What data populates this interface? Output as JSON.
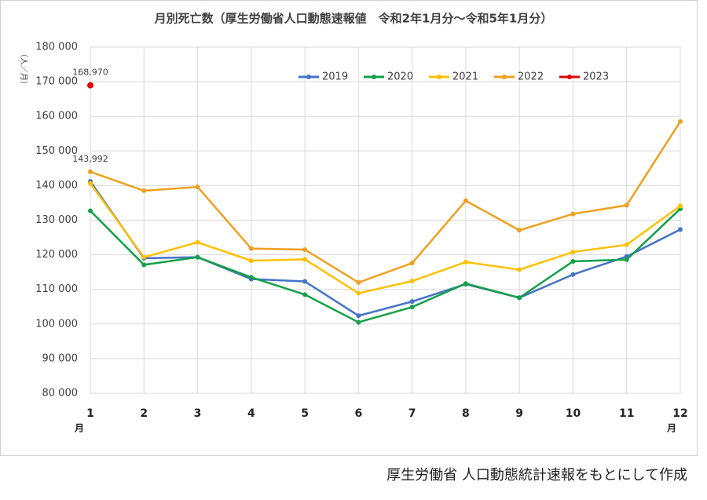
{
  "chart_data": {
    "type": "line",
    "title": "月別死亡数（厚生労働省人口動態速報値　令和2年1月分～令和5年1月分）",
    "y_label": "（人／月）",
    "x_unit_labels": [
      "月",
      "月"
    ],
    "source": "厚生労働省 人口動態統計速報をもとにして作成",
    "x": [
      1,
      2,
      3,
      4,
      5,
      6,
      7,
      8,
      9,
      10,
      11,
      12
    ],
    "xlim": [
      1,
      12
    ],
    "xticks": [
      1,
      2,
      3,
      4,
      5,
      6,
      7,
      8,
      9,
      10,
      11,
      12
    ],
    "ylim": [
      80000,
      180000
    ],
    "yticks": [
      {
        "value": 80000,
        "label": "80 000"
      },
      {
        "value": 90000,
        "label": "90 000"
      },
      {
        "value": 100000,
        "label": "100 000"
      },
      {
        "value": 110000,
        "label": "110 000"
      },
      {
        "value": 120000,
        "label": "120 000"
      },
      {
        "value": 130000,
        "label": "130 000"
      },
      {
        "value": 140000,
        "label": "140 000"
      },
      {
        "value": 150000,
        "label": "150 000"
      },
      {
        "value": 160000,
        "label": "160 000"
      },
      {
        "value": 170000,
        "label": "170 000"
      },
      {
        "value": 180000,
        "label": "180 000"
      }
    ],
    "grid": true,
    "series": [
      {
        "name": "2019",
        "color": "#4472c4",
        "values": [
          141200,
          119000,
          119300,
          113000,
          112300,
          102400,
          106500,
          111500,
          107600,
          114300,
          119500,
          127300
        ]
      },
      {
        "name": "2020",
        "color": "#14a04a",
        "values": [
          132700,
          117100,
          119300,
          113500,
          108500,
          100500,
          104900,
          111700,
          107600,
          118100,
          118600,
          133300
        ]
      },
      {
        "name": "2021",
        "color": "#ffc000",
        "values": [
          140600,
          119300,
          123600,
          118300,
          118700,
          108900,
          112400,
          117900,
          115700,
          120800,
          122900,
          134100
        ]
      },
      {
        "name": "2022",
        "color": "#f0a020",
        "values": [
          143992,
          138500,
          139600,
          121800,
          121500,
          112000,
          117600,
          135600,
          127100,
          131800,
          134300,
          158500
        ],
        "value_labels": [
          "143,992",
          null,
          null,
          null,
          null,
          null,
          null,
          null,
          null,
          null,
          null,
          null
        ]
      },
      {
        "name": "2023",
        "color": "#e00000",
        "values": [
          168970,
          null,
          null,
          null,
          null,
          null,
          null,
          null,
          null,
          null,
          null,
          null
        ],
        "value_labels": [
          "168,970",
          null,
          null,
          null,
          null,
          null,
          null,
          null,
          null,
          null,
          null,
          null
        ]
      }
    ]
  }
}
